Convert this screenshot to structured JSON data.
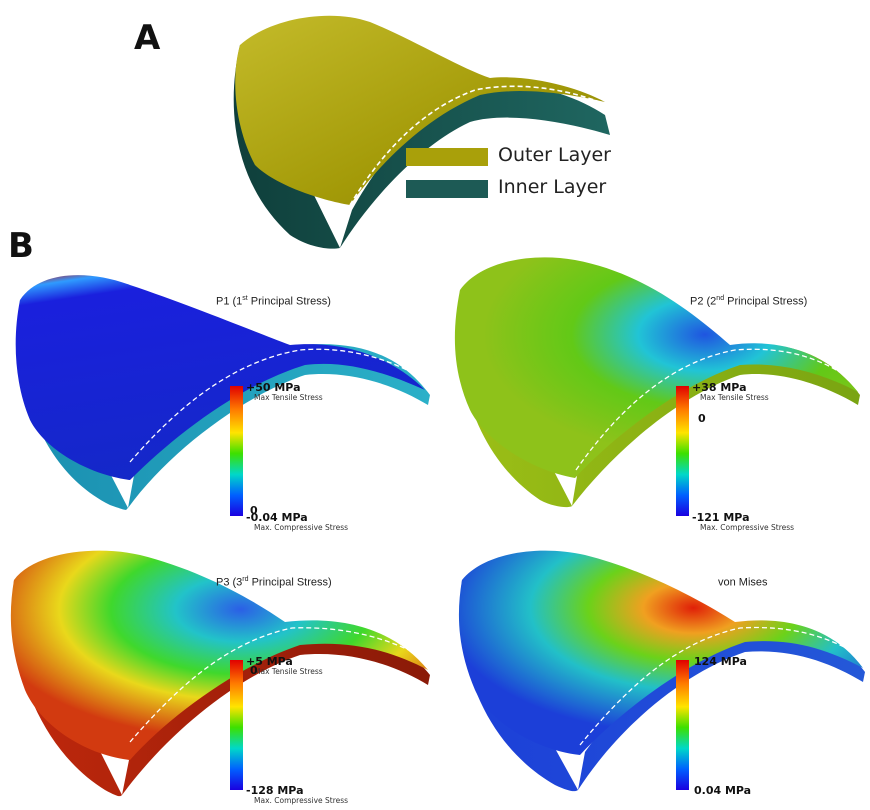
{
  "panel_a": {
    "letter": "A",
    "legend": [
      {
        "label": "Outer Layer",
        "color": "#a9a00a"
      },
      {
        "label": "Inner Layer",
        "color": "#1d5a55"
      }
    ]
  },
  "panel_b": {
    "letter": "B",
    "plots": [
      {
        "title_prefix": "P1 (1",
        "title_sup": "st",
        "title_suffix": " Principal Stress)",
        "max_label": "+50 MPa",
        "max_note": "Max Tensile Stress",
        "zero_label": "0",
        "min_label": "-0.04 MPa",
        "min_note": "Max. Compressive Stress"
      },
      {
        "title_prefix": "P2 (2",
        "title_sup": "nd",
        "title_suffix": " Principal Stress)",
        "max_label": "+38 MPa",
        "max_note": "Max Tensile Stress",
        "zero_label": "0",
        "min_label": "-121 MPa",
        "min_note": "Max. Compressive Stress"
      },
      {
        "title_prefix": "P3 (3",
        "title_sup": "rd",
        "title_suffix": " Principal Stress)",
        "max_label": "+5 MPa",
        "max_note": "Max Tensile Stress",
        "zero_label": "0",
        "min_label": "-128 MPa",
        "min_note": "Max. Compressive Stress"
      },
      {
        "title_prefix": "von Mises",
        "title_sup": "",
        "title_suffix": "",
        "max_label": "124 MPa",
        "max_note": "",
        "zero_label": "",
        "min_label": "0.04 MPa",
        "min_note": ""
      }
    ]
  }
}
